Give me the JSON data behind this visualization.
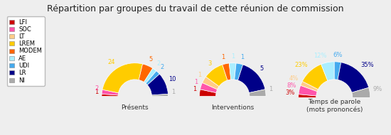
{
  "title": "Répartition par groupes du travail de cette réunion de commission",
  "groups": [
    "LFI",
    "SOC",
    "LT",
    "LREM",
    "MODEM",
    "AE",
    "UDI",
    "LR",
    "NI"
  ],
  "colors": [
    "#cc0000",
    "#ff55aa",
    "#ffcc88",
    "#ffcc00",
    "#ff6600",
    "#aaeeff",
    "#44aaee",
    "#000088",
    "#aaaaaa"
  ],
  "presentes": [
    1,
    2,
    0,
    24,
    5,
    2,
    2,
    10,
    1
  ],
  "interventions": [
    1,
    1,
    1,
    3,
    1,
    1,
    1,
    5,
    1
  ],
  "temps_parole_pct": [
    3,
    8,
    4,
    23,
    0,
    12,
    6,
    35,
    9
  ],
  "presentes_labels": [
    "1",
    "2",
    "",
    "24",
    "5",
    "2",
    "2",
    "10",
    "1"
  ],
  "interventions_labels": [
    "1",
    "1",
    "1",
    "3",
    "1",
    "1",
    "1",
    "5",
    "1"
  ],
  "temps_labels": [
    "3%",
    "8%",
    "4%",
    "23%",
    "",
    "12%",
    "6%",
    "35%",
    "9%"
  ],
  "chart_titles": [
    "Présents",
    "Interventions",
    "Temps de parole\n(mots prononcés)"
  ],
  "bg_color": "#eeeeee",
  "legend_bg": "#ffffff",
  "title_fontsize": 9,
  "legend_fontsize": 6,
  "label_fontsize": 6,
  "title_label_fontsize": 6.5
}
